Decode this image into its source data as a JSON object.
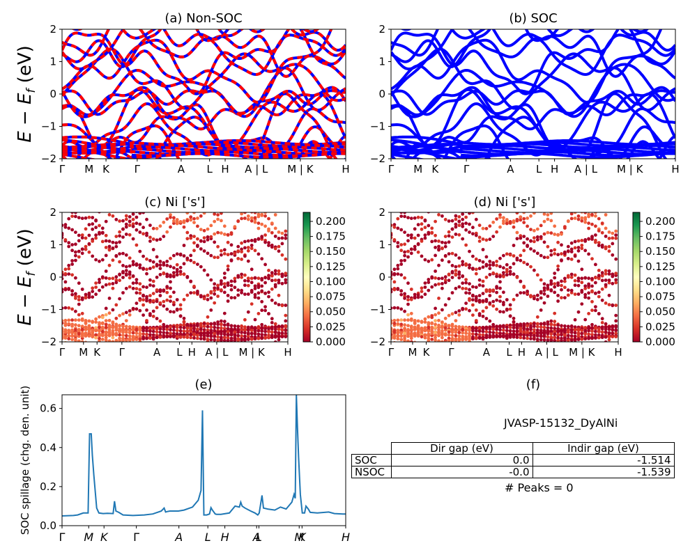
{
  "colors": {
    "nonsoc_base": "#0000ff",
    "nonsoc_overlay": "#ff0000",
    "soc": "#0000ff",
    "spillage": "#1f77b4",
    "cmap": [
      "#a50026",
      "#d73027",
      "#f46d43",
      "#fdae61",
      "#fee08b",
      "#ffffbf",
      "#d9ef8b",
      "#a6d96a",
      "#66bd63",
      "#1a9850",
      "#006837"
    ]
  },
  "ylabel": "E − E_f (eV)",
  "band_yticks": [
    "−2",
    "−1",
    "0",
    "1",
    "2"
  ],
  "band_ylim": [
    -2,
    2
  ],
  "kpath_labels": [
    "Γ",
    "M",
    "K",
    "Γ",
    "A",
    "L",
    "H",
    "A | L",
    "M | K",
    "H"
  ],
  "kpath_pos": [
    0,
    0.095,
    0.155,
    0.265,
    0.42,
    0.52,
    0.575,
    0.685,
    0.84,
    1.0
  ],
  "panels": {
    "a": {
      "title": "(a) Non-SOC"
    },
    "b": {
      "title": "(b) SOC"
    },
    "c": {
      "title": "(c)  Ni ['s']"
    },
    "d": {
      "title": "(d) Ni ['s']"
    },
    "e": {
      "title": "(e)"
    },
    "f": {
      "title": "(f)"
    }
  },
  "colorbar_ticks": [
    "0.000",
    "0.025",
    "0.050",
    "0.075",
    "0.100",
    "0.125",
    "0.150",
    "0.175",
    "0.200"
  ],
  "colorbar_range": [
    0,
    0.215
  ],
  "chart_data": [
    {
      "type": "line",
      "panel": "e",
      "title": "(e)",
      "ylabel": "SOC spillage (chg. den. unit)",
      "ylim": [
        0,
        0.67
      ],
      "yticks": [
        "0.0",
        "0.2",
        "0.4",
        "0.6"
      ],
      "xticks": [
        "Γ",
        "M",
        "K",
        "Γ",
        "A",
        "L",
        "H",
        "A",
        "L",
        "M",
        "K",
        "H"
      ],
      "xtick_pos": [
        0,
        0.094,
        0.148,
        0.262,
        0.412,
        0.514,
        0.574,
        0.686,
        0.694,
        0.836,
        0.846,
        1.0
      ],
      "x": [
        0,
        0.04,
        0.055,
        0.075,
        0.085,
        0.092,
        0.097,
        0.1,
        0.103,
        0.107,
        0.112,
        0.118,
        0.122,
        0.13,
        0.145,
        0.16,
        0.18,
        0.185,
        0.19,
        0.2,
        0.215,
        0.25,
        0.29,
        0.32,
        0.35,
        0.36,
        0.365,
        0.37,
        0.38,
        0.41,
        0.43,
        0.46,
        0.48,
        0.49,
        0.495,
        0.5,
        0.51,
        0.52,
        0.525,
        0.53,
        0.54,
        0.545,
        0.56,
        0.59,
        0.61,
        0.625,
        0.63,
        0.635,
        0.645,
        0.665,
        0.68,
        0.69,
        0.695,
        0.705,
        0.71,
        0.725,
        0.75,
        0.77,
        0.79,
        0.81,
        0.818,
        0.822,
        0.826,
        0.83,
        0.834,
        0.84,
        0.847,
        0.855,
        0.86,
        0.868,
        0.875,
        0.9,
        0.94,
        0.96,
        0.99,
        1.0
      ],
      "series": [
        {
          "values": [
            0.05,
            0.052,
            0.055,
            0.065,
            0.065,
            0.065,
            0.47,
            0.47,
            0.47,
            0.36,
            0.26,
            0.16,
            0.09,
            0.065,
            0.062,
            0.063,
            0.062,
            0.125,
            0.075,
            0.068,
            0.055,
            0.052,
            0.055,
            0.06,
            0.075,
            0.09,
            0.07,
            0.072,
            0.075,
            0.075,
            0.08,
            0.095,
            0.13,
            0.18,
            0.59,
            0.055,
            0.055,
            0.06,
            0.092,
            0.08,
            0.06,
            0.058,
            0.058,
            0.065,
            0.1,
            0.095,
            0.12,
            0.1,
            0.09,
            0.075,
            0.065,
            0.055,
            0.065,
            0.155,
            0.09,
            0.085,
            0.08,
            0.095,
            0.085,
            0.12,
            0.16,
            0.14,
            0.67,
            0.5,
            0.35,
            0.16,
            0.065,
            0.065,
            0.1,
            0.085,
            0.068,
            0.065,
            0.07,
            0.062,
            0.06,
            0.06
          ]
        }
      ]
    },
    {
      "type": "table",
      "panel": "f",
      "title": "(f)",
      "caption": "JVASP-15132_DyAlNi",
      "columns": [
        "Dir gap (eV)",
        "Indir gap (eV)"
      ],
      "rows": [
        {
          "label": "SOC",
          "dir": "0.0",
          "indir": "-1.514"
        },
        {
          "label": "NSOC",
          "dir": "-0.0",
          "indir": "-1.539"
        }
      ],
      "footer": "# Peaks = 0"
    }
  ]
}
